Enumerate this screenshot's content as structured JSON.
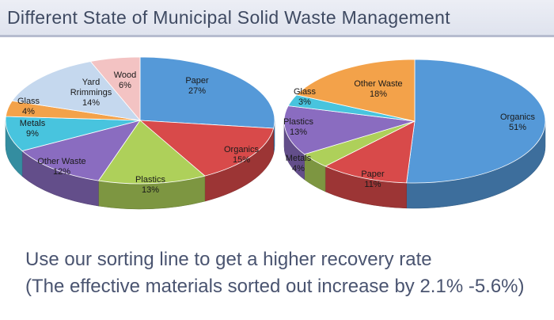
{
  "header": {
    "title": "Different State of Municipal Solid Waste Management"
  },
  "chart_data": [
    {
      "type": "pie",
      "labels": [
        "Paper",
        "Organics",
        "Plastics",
        "Other Waste",
        "Metals",
        "Glass",
        "Yard Rrimmings",
        "Wood"
      ],
      "label_lines": [
        [
          "Paper"
        ],
        [
          "Organics"
        ],
        [
          "Plastics"
        ],
        [
          "Other Waste"
        ],
        [
          "Metals"
        ],
        [
          "Glass"
        ],
        [
          "Yard",
          "Rrimmings"
        ],
        [
          "Wood"
        ]
      ],
      "values": [
        27,
        15,
        13,
        12,
        9,
        4,
        14,
        6
      ],
      "value_labels": [
        "27%",
        "15%",
        "13%",
        "12%",
        "9%",
        "4%",
        "14%",
        "6%"
      ],
      "colors": [
        "#5599d8",
        "#d84a4a",
        "#aed05a",
        "#8a6cc0",
        "#48c4de",
        "#f3a24a",
        "#c5d8ee",
        "#f3c3c3"
      ],
      "style": "3d"
    },
    {
      "type": "pie",
      "labels": [
        "Organics",
        "Paper",
        "Metals",
        "Plastics",
        "Glass",
        "Other Waste"
      ],
      "label_lines": [
        [
          "Organics"
        ],
        [
          "Paper"
        ],
        [
          "Metals"
        ],
        [
          "Plastics"
        ],
        [
          "Glass"
        ],
        [
          "Other Waste"
        ]
      ],
      "values": [
        51,
        11,
        4,
        13,
        3,
        18
      ],
      "value_labels": [
        "51%",
        "11%",
        "4%",
        "13%",
        "3%",
        "18%"
      ],
      "colors": [
        "#5599d8",
        "#d84a4a",
        "#aed05a",
        "#8a6cc0",
        "#48c4de",
        "#f3a24a"
      ],
      "style": "3d"
    }
  ],
  "caption": {
    "line1": "Use our sorting line to get a higher recovery rate",
    "line2": "(The effective materials sorted out increase by 2.1% -5.6%)"
  }
}
